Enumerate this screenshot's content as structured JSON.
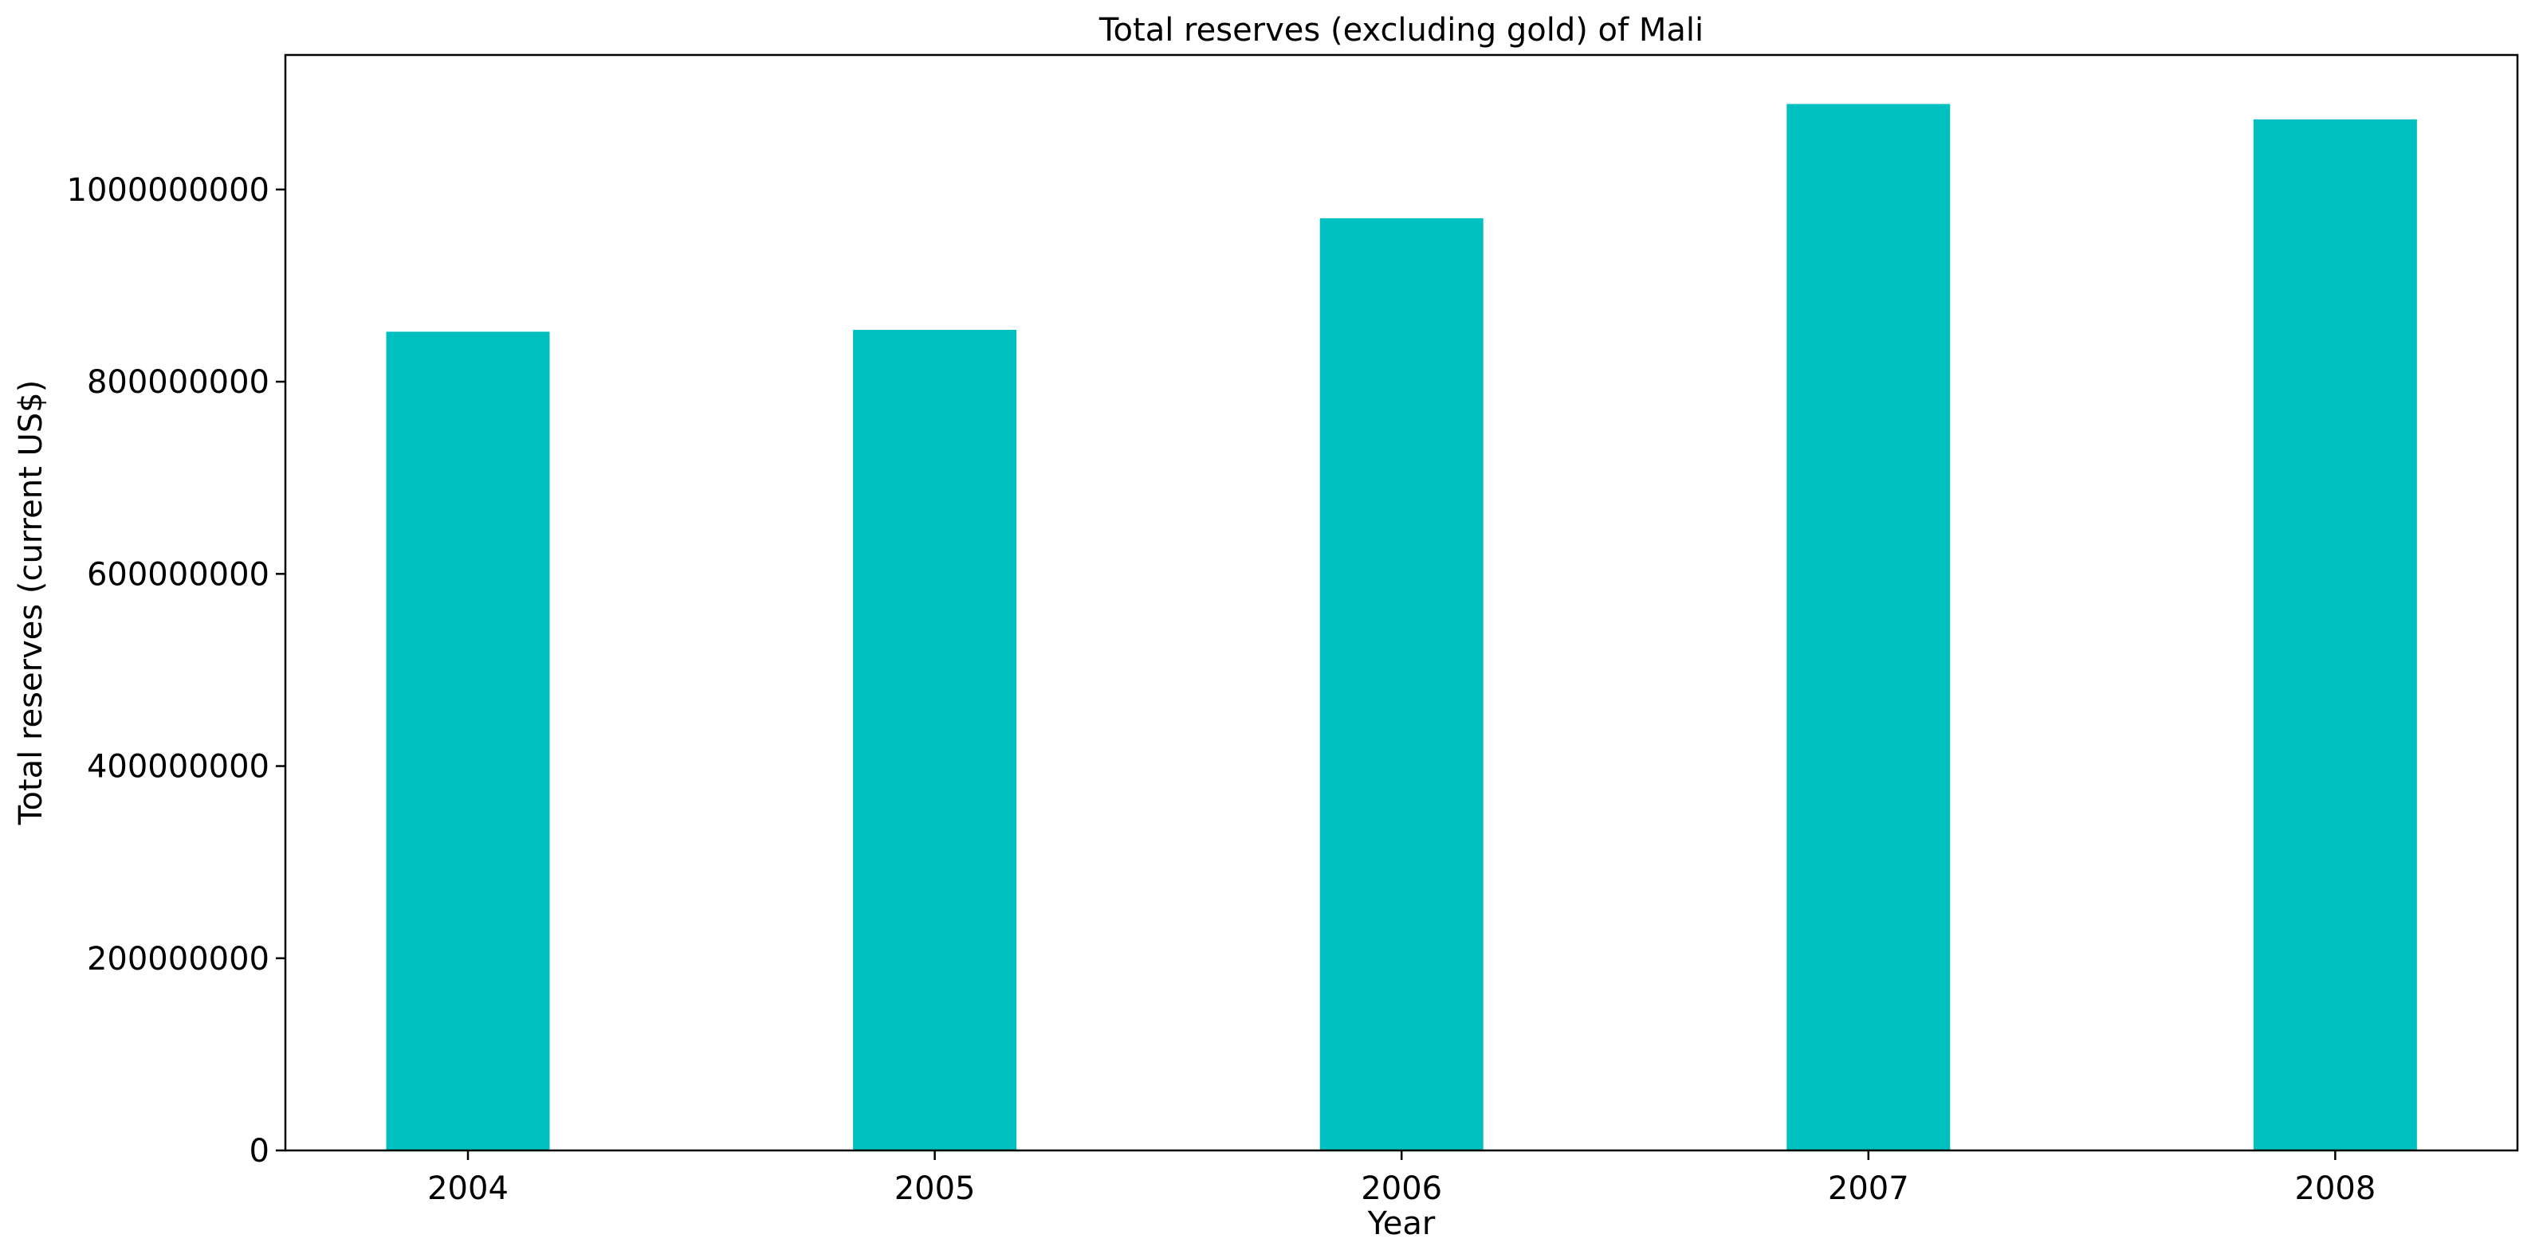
{
  "chart_data": {
    "type": "bar",
    "title": "Total reserves (excluding gold) of Mali",
    "xlabel": "Year",
    "ylabel": "Total reserves (current US$)",
    "categories": [
      "2004",
      "2005",
      "2006",
      "2007",
      "2008"
    ],
    "values": [
      852000000,
      854000000,
      970000000,
      1089000000,
      1073000000
    ],
    "ylim": [
      0,
      1140000000
    ],
    "yticks": [
      0,
      200000000,
      400000000,
      600000000,
      800000000,
      1000000000
    ],
    "ytick_labels": [
      "0",
      "200000000",
      "400000000",
      "600000000",
      "800000000",
      "1000000000"
    ],
    "bar_color": "#00bfbf",
    "grid": false,
    "legend": "none"
  }
}
